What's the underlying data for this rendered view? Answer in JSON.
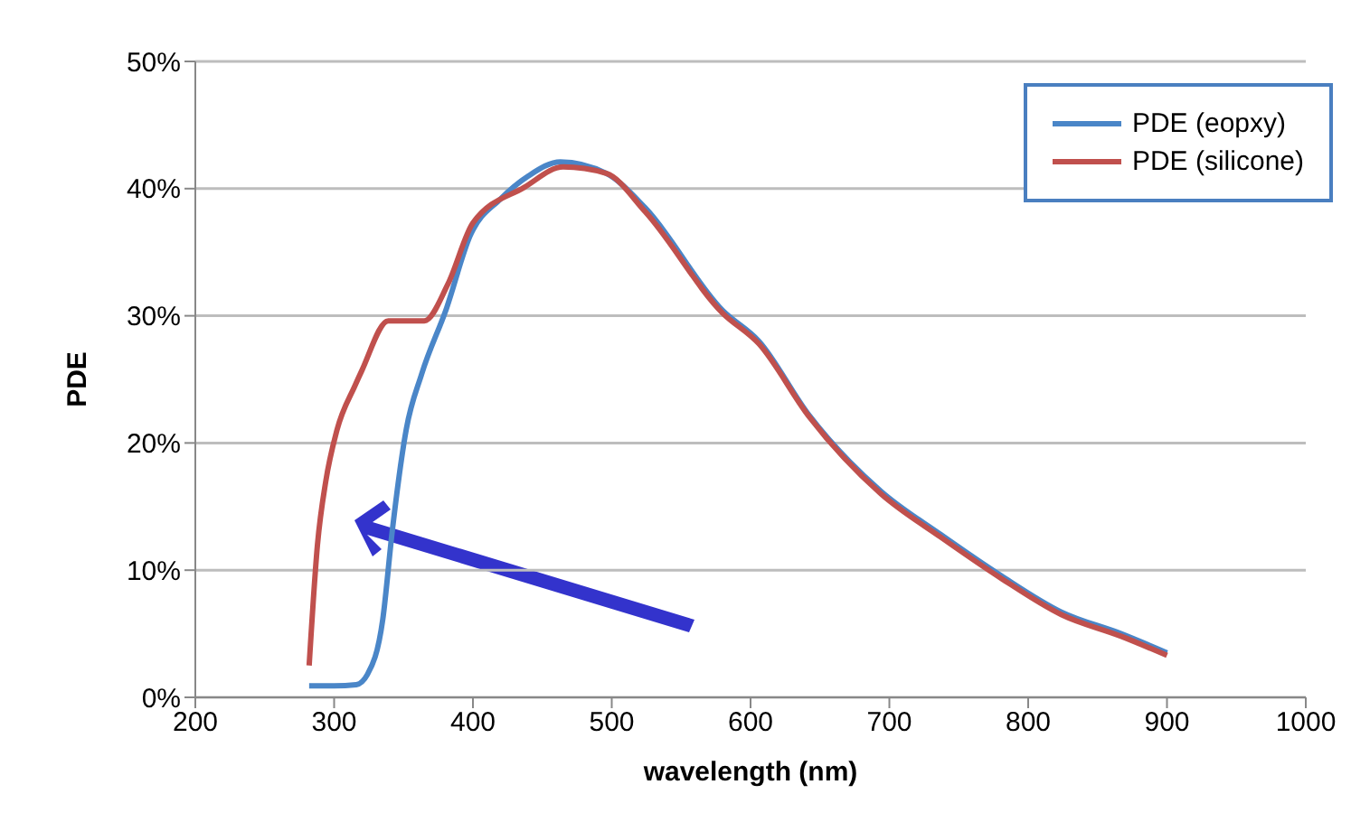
{
  "chart_data": {
    "type": "line",
    "xlabel": "wavelength (nm)",
    "ylabel": "PDE",
    "xlim": [
      200,
      1000
    ],
    "xticks": [
      200,
      300,
      400,
      500,
      600,
      700,
      800,
      900,
      1000
    ],
    "ylim": [
      0,
      50
    ],
    "yticks": [
      {
        "value": 0,
        "label": "0%"
      },
      {
        "value": 10,
        "label": "10%"
      },
      {
        "value": 20,
        "label": "20%"
      },
      {
        "value": 30,
        "label": "30%"
      },
      {
        "value": 40,
        "label": "40%"
      },
      {
        "value": 50,
        "label": "50%"
      }
    ],
    "grid": "y",
    "legend": "top right",
    "marker": "none",
    "line_style": "solid",
    "series": [
      {
        "name": "PDE (eopxy)",
        "color": "#4a86c8",
        "x": [
          282,
          300,
          316,
          324,
          335,
          342,
          352,
          363,
          381,
          398,
          420,
          440,
          463,
          496,
          524,
          580,
          606,
          642,
          694,
          737,
          780,
          824,
          867,
          900
        ],
        "values": [
          0.9,
          0.9,
          1.0,
          1.8,
          6.1,
          13.2,
          21.1,
          25.4,
          30.6,
          36.3,
          39.2,
          41,
          42.1,
          41.2,
          38.5,
          30.4,
          28,
          22.2,
          16.2,
          12.8,
          9.6,
          6.7,
          5,
          3.5
        ]
      },
      {
        "name": "PDE (silicone)",
        "color": "#c0504d",
        "x": [
          282,
          288,
          294,
          302,
          315,
          320,
          339,
          365,
          382,
          400,
          437,
          465,
          496,
          524,
          580,
          606,
          642,
          694,
          737,
          780,
          824,
          867,
          900
        ],
        "values": [
          2.5,
          12,
          17,
          21,
          24.5,
          25.7,
          29.6,
          29.6,
          32.5,
          37.3,
          40.1,
          41.7,
          41.2,
          38.2,
          30.2,
          27.8,
          22.1,
          16,
          12.6,
          9.4,
          6.5,
          4.8,
          3.3
        ]
      }
    ]
  }
}
